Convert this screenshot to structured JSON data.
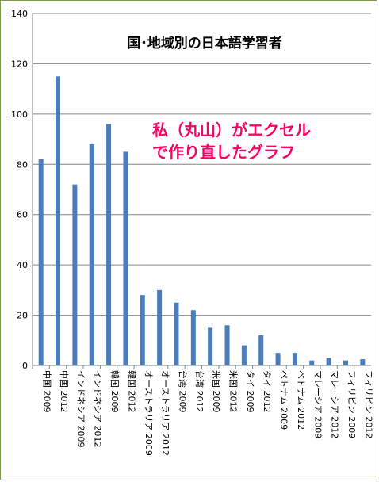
{
  "chart_data": {
    "type": "bar",
    "title": "国･地域別の日本語学習者",
    "annotation_lines": [
      "私（丸山）がエクセル",
      "で作り直したグラフ"
    ],
    "annotation_color": "#ff0066",
    "bar_color": "#4a7ebb",
    "ylim": [
      0,
      140
    ],
    "yticks": [
      0,
      20,
      40,
      60,
      80,
      100,
      120,
      140
    ],
    "grid": true,
    "categories": [
      "中国 2009",
      "中国 2012",
      "インドネシア 2009",
      "インドネシア 2012",
      "韓国 2009",
      "韓国 2012",
      "オーストラリア 2009",
      "オーストラリア 2012",
      "台湾 2009",
      "台湾 2012",
      "米国 2009",
      "米国 2012",
      "タイ 2009",
      "タイ 2012",
      "ベトナム 2009",
      "ベトナム 2012",
      "マレーシア 2009",
      "マレーシア 2012",
      "フィリピン 2009",
      "フィリピン 2012"
    ],
    "values": [
      82,
      115,
      72,
      88,
      96,
      85,
      28,
      30,
      25,
      22,
      15,
      16,
      8,
      12,
      5,
      5,
      2,
      3,
      2,
      2.5
    ]
  }
}
